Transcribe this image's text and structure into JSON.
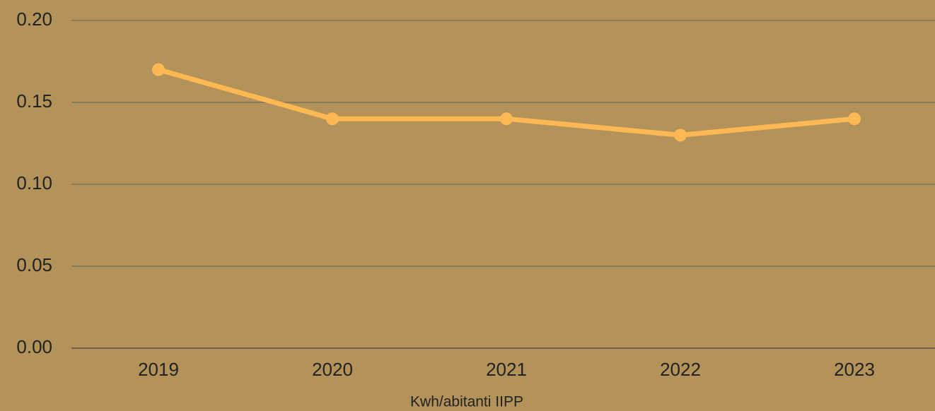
{
  "chart_data": {
    "type": "line",
    "categories": [
      "2019",
      "2020",
      "2021",
      "2022",
      "2023"
    ],
    "series": [
      {
        "name": "Kwh/abitanti IIPP",
        "color": "#fdb853",
        "values": [
          0.17,
          0.14,
          0.14,
          0.13,
          0.14
        ]
      }
    ],
    "ylim": [
      0,
      0.2
    ],
    "yticks": [
      {
        "value": 0,
        "label": "0.00"
      },
      0.05,
      {
        "value": 0.1,
        "label": "0.10"
      },
      0.15,
      {
        "value": 0.2,
        "label": "0.20"
      }
    ],
    "grid": true,
    "legend": "bottom"
  }
}
